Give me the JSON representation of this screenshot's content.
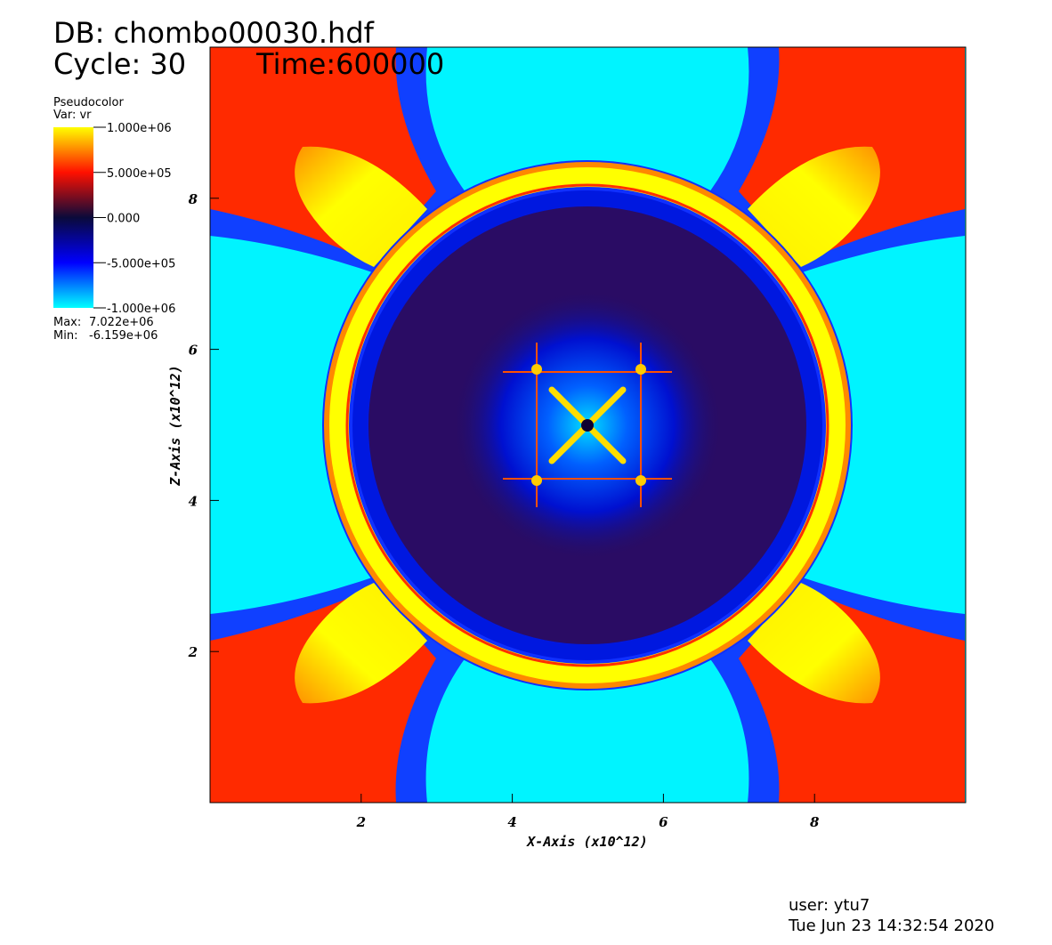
{
  "chart_data": {
    "type": "pseudocolor",
    "title": "DB: chombo00030.hdf",
    "cycle": "Cycle: 30",
    "time": "Time:600000",
    "plot_name": "Pseudocolor",
    "variable": "Var: vr",
    "x_label": "X-Axis (x10^12)",
    "y_label": "Z-Axis (x10^12)",
    "xlim": [
      0,
      10
    ],
    "ylim": [
      0,
      10
    ],
    "xticks": [
      2,
      4,
      6,
      8
    ],
    "yticks": [
      2,
      4,
      6,
      8
    ],
    "colorbar_lim": [
      -1000000,
      1000000
    ],
    "colormap": [
      "#00ffff",
      "#0000ff",
      "#0a0a3a",
      "#ff1000",
      "#ffff00"
    ],
    "colorbar_ticks": [
      {
        "value": 1000000,
        "label": "1.000e+06"
      },
      {
        "value": 500000,
        "label": "5.000e+05"
      },
      {
        "value": 0,
        "label": "0.000"
      },
      {
        "value": -500000,
        "label": "-5.000e+05"
      },
      {
        "value": -1000000,
        "label": "-1.000e+06"
      }
    ],
    "stats": [
      {
        "name": "Max:",
        "value": 7022000,
        "label": "7.022e+06"
      },
      {
        "name": "Min:",
        "value": -6159000,
        "label": "-6.159e+06"
      }
    ],
    "user": "user: ytu7",
    "date": "Tue Jun 23 14:32:54 2020"
  }
}
